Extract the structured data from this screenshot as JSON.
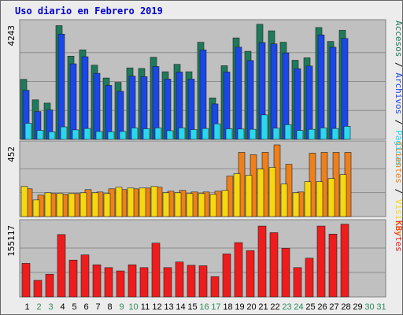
{
  "title": "Uso diario en Febrero 2019",
  "colors": {
    "accesos": "#1e7a5a",
    "archivos": "#1a47e6",
    "paginas": "#2ad8ee",
    "visitas": "#f5d80f",
    "clientes": "#ee7f1a",
    "kbytes": "#ee1c1c",
    "panel_bg": "#c0c0c0",
    "weekend_day": "#2a8a5a",
    "weekday_day": "#000000"
  },
  "right_labels": {
    "top": [
      {
        "text": "Accesos",
        "color": "#1e7a5a"
      },
      {
        "text": " / ",
        "color": "#000000"
      },
      {
        "text": "Archivos",
        "color": "#1a47e6"
      },
      {
        "text": " / ",
        "color": "#000000"
      },
      {
        "text": "Páginas",
        "color": "#2ad8ee"
      }
    ],
    "mid": [
      {
        "text": "Clientes",
        "color": "#ee7f1a"
      },
      {
        "text": " / ",
        "color": "#000000"
      },
      {
        "text": "Visitas",
        "color": "#f5d80f"
      }
    ],
    "bot": [
      {
        "text": "KBytes",
        "color": "#ee1c1c"
      }
    ]
  },
  "chart_data": {
    "type": "bar",
    "x": [
      "1",
      "2",
      "3",
      "4",
      "5",
      "6",
      "7",
      "8",
      "9",
      "10",
      "11",
      "12",
      "13",
      "14",
      "15",
      "16",
      "17",
      "18",
      "19",
      "20",
      "21",
      "22",
      "23",
      "24",
      "25",
      "26",
      "27",
      "28",
      "29",
      "30",
      "31"
    ],
    "weekend_days": [
      2,
      3,
      9,
      10,
      16,
      17,
      23,
      24,
      30,
      31
    ],
    "panels": [
      {
        "name": "top",
        "ymax_label": "4243",
        "ymax": 4243,
        "series": [
          {
            "name": "Accesos",
            "values": [
              2200,
              1450,
              1330,
              4170,
              3050,
              3280,
              2720,
              2250,
              2090,
              2620,
              2600,
              3010,
              2480,
              2750,
              2480,
              3560,
              1520,
              2700,
              3720,
              3230,
              4220,
              3980,
              3560,
              2900,
              2990,
              4100,
              3590,
              4000,
              0,
              0,
              0
            ]
          },
          {
            "name": "Archivos",
            "values": [
              1800,
              1020,
              1080,
              3860,
              2770,
              3030,
              2420,
              1980,
              1760,
              2320,
              2300,
              2670,
              2210,
              2470,
              2210,
              3280,
              1300,
              2470,
              3380,
              2890,
              3550,
              3500,
              3170,
              2590,
              2690,
              3830,
              3380,
              3700,
              0,
              0,
              0
            ]
          },
          {
            "name": "Páginas",
            "values": [
              590,
              330,
              280,
              460,
              350,
              400,
              290,
              280,
              290,
              420,
              390,
              420,
              320,
              420,
              360,
              400,
              570,
              390,
              380,
              370,
              900,
              410,
              540,
              330,
              370,
              420,
              400,
              480,
              0,
              0,
              0
            ]
          }
        ]
      },
      {
        "name": "mid",
        "ymax_label": "452",
        "ymax": 452,
        "series": [
          {
            "name": "Visitas",
            "values": [
              190,
              105,
              150,
              145,
              145,
              150,
              150,
              145,
              185,
              180,
              180,
              190,
              150,
              150,
              145,
              145,
              140,
              165,
              270,
              260,
              300,
              310,
              205,
              150,
              220,
              220,
              240,
              265,
              0,
              0,
              0
            ]
          },
          {
            "name": "Clientes",
            "values": [
              175,
              135,
              145,
              140,
              145,
              170,
              155,
              175,
              170,
              175,
              180,
              185,
              160,
              165,
              155,
              155,
              160,
              255,
              405,
              390,
              405,
              452,
              330,
              155,
              400,
              405,
              405,
              405,
              0,
              0,
              0
            ]
          }
        ]
      },
      {
        "name": "bot",
        "ymax_label": "155117",
        "ymax": 155117,
        "series": [
          {
            "name": "KBytes",
            "values": [
              71000,
              35000,
              48000,
              132000,
              78000,
              89000,
              68000,
              62000,
              55000,
              68000,
              62000,
              114000,
              62000,
              74000,
              67000,
              66000,
              43000,
              91000,
              115000,
              98000,
              150000,
              136000,
              103000,
              62000,
              82000,
              150000,
              133000,
              154000,
              0,
              0,
              0
            ]
          }
        ]
      }
    ]
  }
}
